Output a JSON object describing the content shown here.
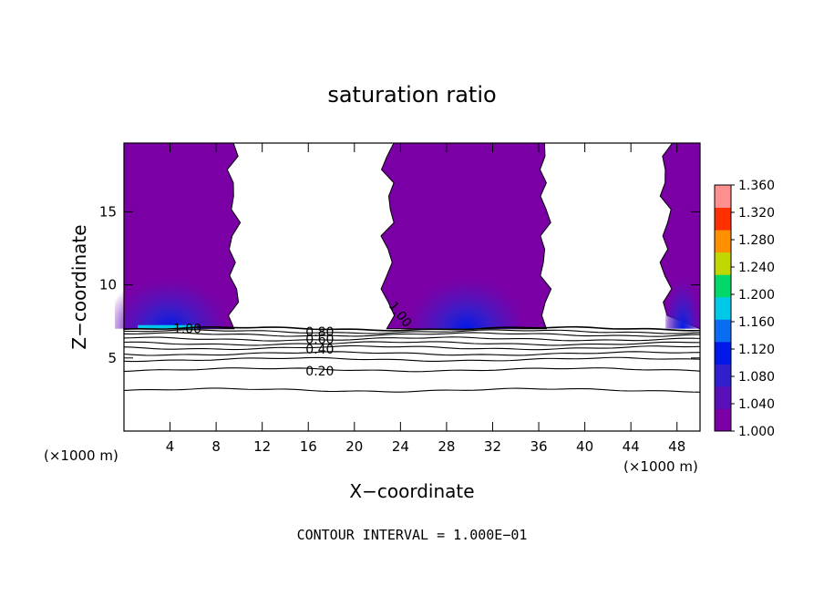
{
  "chart_data": {
    "type": "heatmap",
    "title": "saturation ratio",
    "xlabel": "X−coordinate",
    "ylabel": "Z−coordinate",
    "x_unit_left": "(×1000 m)",
    "x_unit_right": "(×1000 m)",
    "xlim": [
      0,
      50
    ],
    "ylim": [
      0,
      19.7
    ],
    "x_ticks": [
      4,
      8,
      12,
      16,
      20,
      24,
      28,
      32,
      36,
      40,
      44,
      48
    ],
    "y_ticks": [
      5,
      10,
      15
    ],
    "colorbar": {
      "levels": [
        "1.000",
        "1.040",
        "1.080",
        "1.120",
        "1.160",
        "1.200",
        "1.240",
        "1.280",
        "1.320",
        "1.360"
      ],
      "colors": [
        "#7a00a6",
        "#5a10b8",
        "#3020cc",
        "#0018e8",
        "#0a6cf0",
        "#00c8e8",
        "#00d86a",
        "#c0d800",
        "#ff9000",
        "#ff3000",
        "#ff9090"
      ]
    },
    "fill_regions": [
      {
        "name": "column-1",
        "x": [
          0,
          9.5
        ],
        "z_bottom": 7.0,
        "z_top": 19.7
      },
      {
        "name": "column-2",
        "x": [
          23,
          36.5
        ],
        "z_bottom": 7.0,
        "z_top": 19.7
      },
      {
        "name": "column-3",
        "x": [
          47,
          50
        ],
        "z_bottom": 7.0,
        "z_top": 19.7
      }
    ],
    "contour_labels": [
      {
        "text": "1.00",
        "x": 5.5,
        "z": 7.0
      },
      {
        "text": "1.00",
        "x": 24,
        "z": 8.0
      },
      {
        "text": "0.80",
        "x": 17,
        "z": 6.8
      },
      {
        "text": "0.60",
        "x": 17,
        "z": 6.3
      },
      {
        "text": "0.40",
        "x": 17,
        "z": 5.6
      },
      {
        "text": "0.20",
        "x": 17,
        "z": 4.1
      }
    ],
    "contour_lines": [
      {
        "level": "1.00",
        "z": 7.0
      },
      {
        "level": "0.90",
        "z": 6.8
      },
      {
        "level": "0.80",
        "z": 6.6
      },
      {
        "level": "0.70",
        "z": 6.3
      },
      {
        "level": "0.60",
        "z": 6.0
      },
      {
        "level": "0.50",
        "z": 5.7
      },
      {
        "level": "0.40",
        "z": 5.3
      },
      {
        "level": "0.30",
        "z": 4.9
      },
      {
        "level": "0.20",
        "z": 4.2
      },
      {
        "level": "0.10",
        "z": 2.8
      }
    ],
    "footer": "CONTOUR INTERVAL = 1.000E−01",
    "grid": false
  }
}
